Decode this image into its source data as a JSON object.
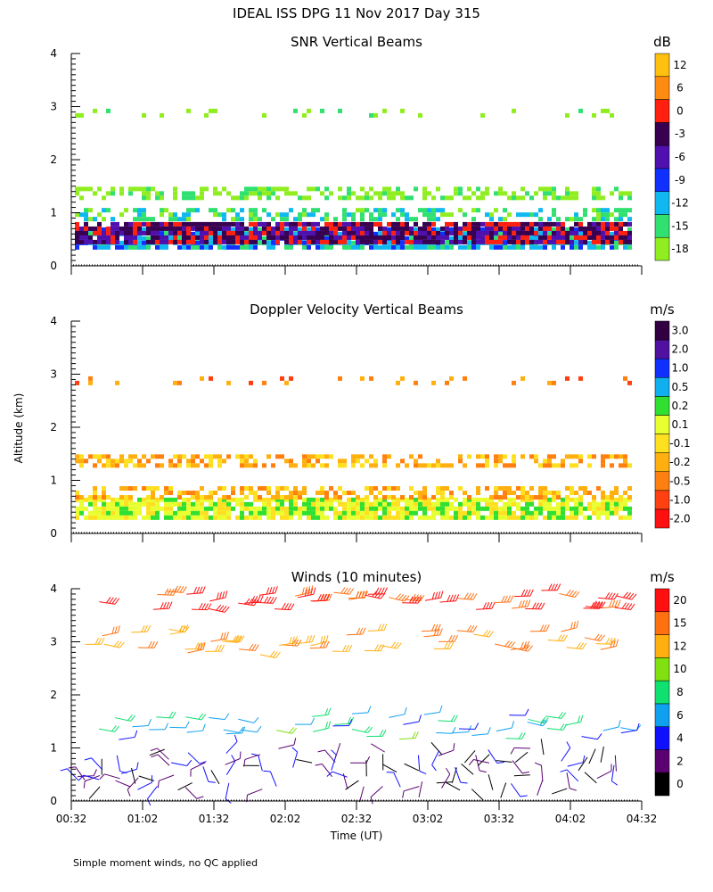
{
  "title": "IDEAL ISS DPG  11 Nov 2017 Day 315",
  "footnote": "Simple moment winds, no QC applied",
  "ylabel": "Altitude (km)",
  "xlabel": "Time (UT)",
  "chart_data": [
    {
      "type": "heatmap",
      "title": "SNR Vertical Beams",
      "colorbar_unit": "dB",
      "y_ticks": [
        "0",
        "1",
        "2",
        "3",
        "4"
      ],
      "ylim": [
        0,
        4
      ],
      "colorbar": {
        "labels": [
          "-18",
          "-15",
          "-12",
          "-9",
          "-6",
          "-3",
          "0",
          "6",
          "12"
        ],
        "colors": [
          "#90ee20",
          "#30e070",
          "#10b8f0",
          "#1030ff",
          "#5010b0",
          "#380050",
          "#ff2010",
          "#ff8c10",
          "#ffc010"
        ]
      },
      "layers": [
        {
          "altitude": 0.55,
          "level": "-12",
          "coverage": "dense"
        },
        {
          "altitude": 0.65,
          "level": "-3",
          "coverage": "dense"
        },
        {
          "altitude": 1.0,
          "level": "-15",
          "coverage": "patchy"
        },
        {
          "altitude": 1.4,
          "level": "-18",
          "coverage": "patchy"
        },
        {
          "altitude": 2.9,
          "level": "-18",
          "coverage": "sparse"
        }
      ]
    },
    {
      "type": "heatmap",
      "title": "Doppler Velocity Vertical Beams",
      "colorbar_unit": "m/s",
      "y_ticks": [
        "0",
        "1",
        "2",
        "3",
        "4"
      ],
      "ylim": [
        0,
        4
      ],
      "colorbar": {
        "labels": [
          "-2.0",
          "-1.0",
          "-0.5",
          "-0.2",
          "-0.1",
          "0.1",
          "0.2",
          "0.5",
          "1.0",
          "2.0",
          "3.0"
        ],
        "colors": [
          "#ff1010",
          "#ff4010",
          "#ff8010",
          "#ffb010",
          "#ffe020",
          "#e8ff30",
          "#30e030",
          "#10b0f0",
          "#1030ff",
          "#5010a0",
          "#300040"
        ]
      },
      "layers": [
        {
          "altitude": 0.5,
          "level": "0.1",
          "coverage": "dense"
        },
        {
          "altitude": 0.8,
          "level": "-0.2",
          "coverage": "patchy"
        },
        {
          "altitude": 1.4,
          "level": "-0.2",
          "coverage": "patchy"
        },
        {
          "altitude": 2.9,
          "level": "-0.5",
          "coverage": "sparse"
        }
      ]
    },
    {
      "type": "scatter",
      "title": "Winds (10 minutes)",
      "colorbar_unit": "m/s",
      "y_ticks": [
        "0",
        "1",
        "2",
        "3",
        "4"
      ],
      "ylim": [
        0,
        4
      ],
      "colorbar": {
        "labels": [
          "0",
          "2",
          "4",
          "6",
          "8",
          "10",
          "12",
          "15",
          "20"
        ],
        "colors": [
          "#000000",
          "#5a0070",
          "#1010ff",
          "#10a0f0",
          "#10e070",
          "#80e010",
          "#ffb010",
          "#ff7010",
          "#ff1010"
        ]
      },
      "wind_layers": [
        {
          "altitude": 0.6,
          "speed": 3
        },
        {
          "altitude": 1.4,
          "speed": 8
        },
        {
          "altitude": 3.0,
          "speed": 15
        },
        {
          "altitude": 3.8,
          "speed": 20
        }
      ]
    }
  ],
  "x_ticks": [
    "00:32",
    "01:02",
    "01:32",
    "02:02",
    "02:32",
    "03:02",
    "03:32",
    "04:02",
    "04:32"
  ]
}
